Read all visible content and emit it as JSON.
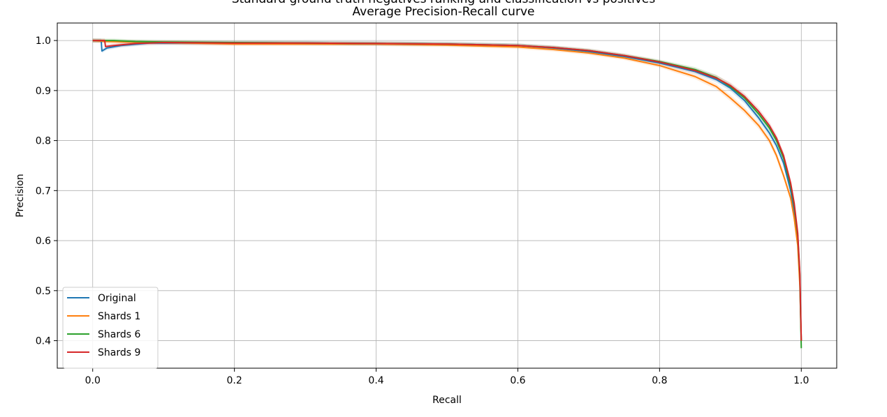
{
  "chart_data": {
    "type": "line",
    "title": "Standard ground truth negatives ranking and classification vs positives",
    "subtitle": "Average Precision-Recall curve",
    "xlabel": "Recall",
    "ylabel": "Precision",
    "xlim": [
      -0.05,
      1.05
    ],
    "ylim": [
      0.345,
      1.035
    ],
    "xticks": [
      "0.0",
      "0.2",
      "0.4",
      "0.6",
      "0.8",
      "1.0"
    ],
    "yticks": [
      "0.4",
      "0.5",
      "0.6",
      "0.7",
      "0.8",
      "0.9",
      "1.0"
    ],
    "grid": true,
    "legend_position": "lower-left",
    "series": [
      {
        "name": "Original",
        "color": "#1f77b4",
        "x": [
          0.0,
          0.012,
          0.013,
          0.02,
          0.04,
          0.08,
          0.2,
          0.3,
          0.4,
          0.5,
          0.6,
          0.65,
          0.7,
          0.75,
          0.8,
          0.85,
          0.88,
          0.9,
          0.92,
          0.94,
          0.955,
          0.965,
          0.975,
          0.985,
          0.99,
          0.995,
          0.998,
          1.0
        ],
        "y": [
          1.0,
          1.0,
          0.979,
          0.985,
          0.99,
          0.995,
          0.995,
          0.995,
          0.994,
          0.993,
          0.99,
          0.985,
          0.978,
          0.968,
          0.955,
          0.938,
          0.922,
          0.905,
          0.88,
          0.845,
          0.815,
          0.79,
          0.755,
          0.7,
          0.66,
          0.6,
          0.52,
          0.4
        ]
      },
      {
        "name": "Shards 1",
        "color": "#ff7f0e",
        "x": [
          0.0,
          0.02,
          0.05,
          0.1,
          0.2,
          0.3,
          0.4,
          0.5,
          0.6,
          0.65,
          0.7,
          0.75,
          0.8,
          0.85,
          0.88,
          0.9,
          0.92,
          0.94,
          0.955,
          0.965,
          0.975,
          0.985,
          0.99,
          0.995,
          0.998,
          1.0
        ],
        "y": [
          1.0,
          0.998,
          0.997,
          0.996,
          0.993,
          0.993,
          0.993,
          0.991,
          0.987,
          0.982,
          0.975,
          0.965,
          0.95,
          0.928,
          0.908,
          0.885,
          0.86,
          0.83,
          0.8,
          0.77,
          0.73,
          0.685,
          0.645,
          0.59,
          0.51,
          0.4
        ]
      },
      {
        "name": "Shards 6",
        "color": "#2ca02c",
        "x": [
          0.0,
          0.01,
          0.03,
          0.06,
          0.1,
          0.2,
          0.3,
          0.4,
          0.5,
          0.6,
          0.65,
          0.7,
          0.75,
          0.8,
          0.85,
          0.88,
          0.9,
          0.92,
          0.94,
          0.955,
          0.965,
          0.975,
          0.985,
          0.99,
          0.995,
          0.998,
          0.999,
          1.0
        ],
        "y": [
          1.0,
          1.0,
          1.0,
          0.998,
          0.997,
          0.996,
          0.995,
          0.994,
          0.993,
          0.99,
          0.986,
          0.98,
          0.97,
          0.958,
          0.942,
          0.926,
          0.908,
          0.885,
          0.853,
          0.825,
          0.8,
          0.765,
          0.71,
          0.67,
          0.61,
          0.53,
          0.45,
          0.385
        ]
      },
      {
        "name": "Shards 9",
        "color": "#d62728",
        "x": [
          0.0,
          0.017,
          0.018,
          0.03,
          0.06,
          0.1,
          0.2,
          0.3,
          0.4,
          0.5,
          0.6,
          0.65,
          0.7,
          0.75,
          0.8,
          0.85,
          0.88,
          0.9,
          0.92,
          0.94,
          0.955,
          0.965,
          0.975,
          0.985,
          0.99,
          0.995,
          0.998,
          1.0
        ],
        "y": [
          1.0,
          1.0,
          0.988,
          0.99,
          0.994,
          0.996,
          0.995,
          0.995,
          0.994,
          0.993,
          0.99,
          0.986,
          0.98,
          0.97,
          0.957,
          0.94,
          0.925,
          0.91,
          0.888,
          0.858,
          0.83,
          0.805,
          0.77,
          0.715,
          0.675,
          0.615,
          0.535,
          0.4
        ]
      }
    ]
  }
}
